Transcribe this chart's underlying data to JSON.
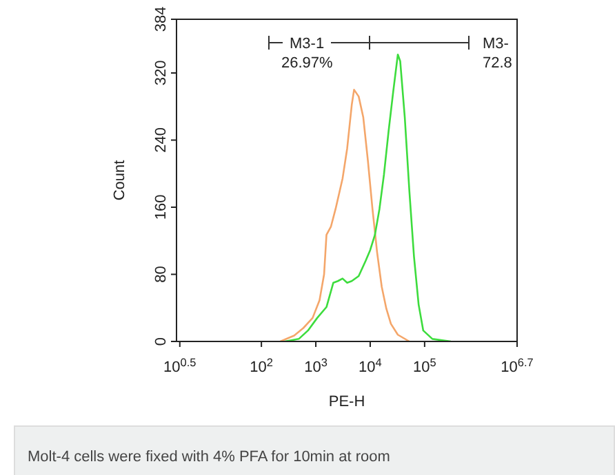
{
  "chart_data": {
    "type": "line",
    "xlabel": "PE-H",
    "ylabel": "Count",
    "log": "x",
    "xlim": [
      2.75,
      5011872
    ],
    "xticks": [
      {
        "value": 3.162,
        "label": "10$^{0.5}$"
      },
      {
        "value": 100,
        "label": "10$^{2}$"
      },
      {
        "value": 1000,
        "label": "10$^{3}$"
      },
      {
        "value": 10000,
        "label": "10$^{4}$"
      },
      {
        "value": 100000,
        "label": "10$^{5}$"
      },
      {
        "value": 5011872,
        "label": "10$^{6.7}$"
      }
    ],
    "ylim": [
      0,
      384
    ],
    "yticks": [
      0,
      80,
      160,
      240,
      320,
      384
    ],
    "grid": false,
    "line_style": "solid",
    "marker": "none",
    "series": [
      {
        "color": "#f4a66a",
        "x": [
          222,
          400,
          590,
          873,
          1170,
          1420,
          1570,
          1900,
          2310,
          3100,
          3770,
          4580,
          5050,
          6140,
          7460,
          9080,
          11000,
          13400,
          16300,
          19800,
          24000,
          32200,
          52500
        ],
        "values": [
          0,
          7,
          16,
          28,
          49,
          80,
          127,
          137,
          158,
          194,
          230,
          282,
          300,
          292,
          267,
          215,
          158,
          106,
          65,
          39,
          21,
          8,
          0
        ]
      },
      {
        "color": "#3ddc3d",
        "x": [
          270,
          486,
          717,
          1060,
          1570,
          2100,
          2550,
          3100,
          3770,
          4580,
          6140,
          8230,
          10000,
          12200,
          14800,
          17900,
          21800,
          26500,
          32200,
          35600,
          43200,
          52500,
          63800,
          77600,
          94400,
          139000,
          304000
        ],
        "values": [
          0,
          3,
          13,
          28,
          41,
          70,
          72,
          75,
          70,
          72,
          78,
          96,
          109,
          127,
          158,
          199,
          251,
          298,
          342,
          334,
          267,
          179,
          101,
          44,
          13,
          3,
          0
        ]
      }
    ],
    "annotations": [
      "M3-1",
      "26.97%",
      "M3-",
      "72.8",
      "Molt-4 cells were fixed with 4% PFA for 10min at room"
    ]
  }
}
